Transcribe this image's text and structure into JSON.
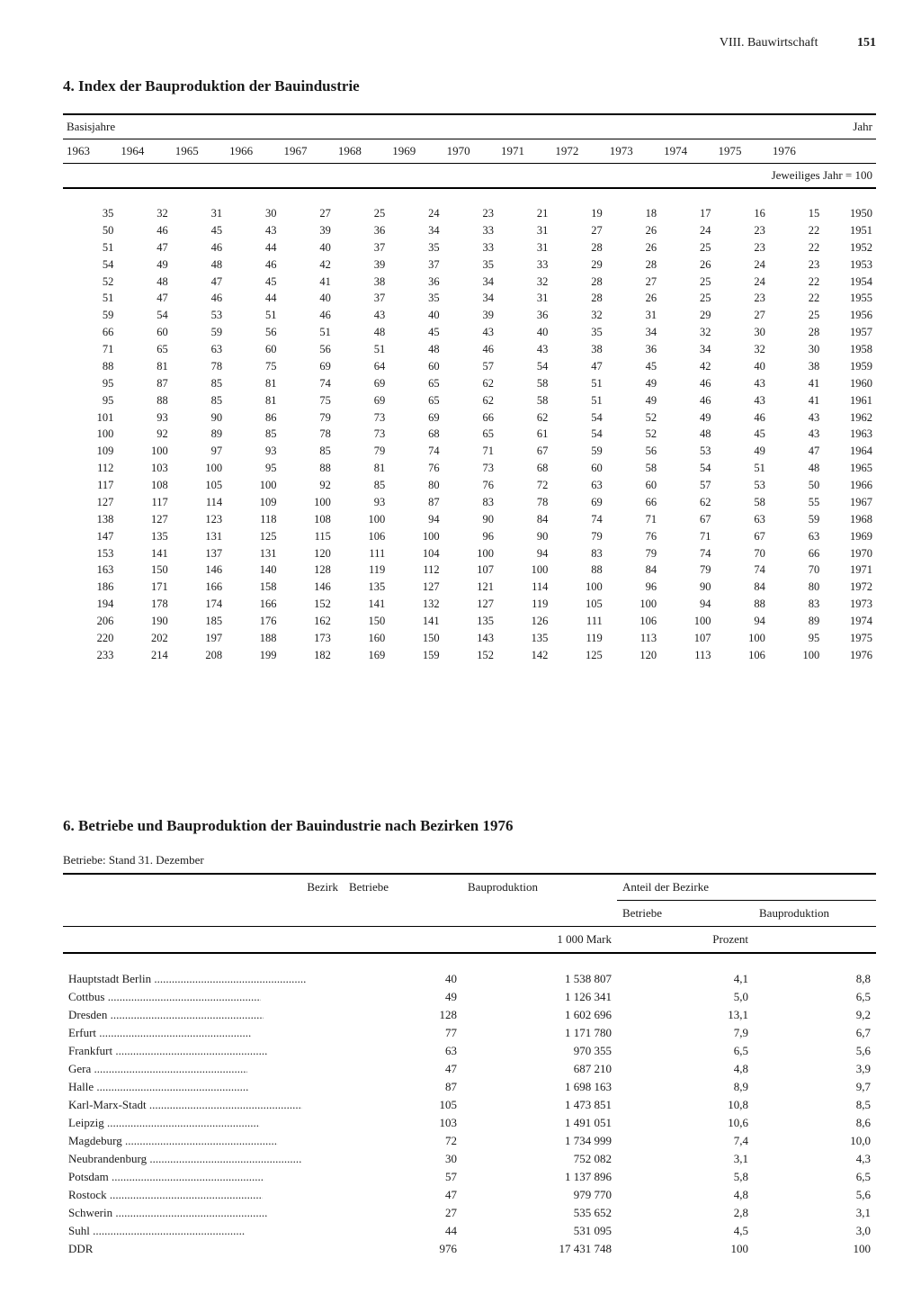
{
  "header": {
    "section": "VIII. Bauwirtschaft",
    "page": "151"
  },
  "table1": {
    "title": "4. Index der Bauproduktion der Bauindustrie",
    "basis_label": "Basisjahre",
    "jahr_label": "Jahr",
    "sub_note": "Jeweiliges Jahr = 100",
    "col_years": [
      "1963",
      "1964",
      "1965",
      "1966",
      "1967",
      "1968",
      "1969",
      "1970",
      "1971",
      "1972",
      "1973",
      "1974",
      "1975",
      "1976"
    ],
    "rows": [
      {
        "v": [
          "35",
          "32",
          "31",
          "30",
          "27",
          "25",
          "24",
          "23",
          "21",
          "19",
          "18",
          "17",
          "16",
          "15"
        ],
        "y": "1950"
      },
      {
        "v": [
          "50",
          "46",
          "45",
          "43",
          "39",
          "36",
          "34",
          "33",
          "31",
          "27",
          "26",
          "24",
          "23",
          "22"
        ],
        "y": "1951"
      },
      {
        "v": [
          "51",
          "47",
          "46",
          "44",
          "40",
          "37",
          "35",
          "33",
          "31",
          "28",
          "26",
          "25",
          "23",
          "22"
        ],
        "y": "1952"
      },
      {
        "v": [
          "54",
          "49",
          "48",
          "46",
          "42",
          "39",
          "37",
          "35",
          "33",
          "29",
          "28",
          "26",
          "24",
          "23"
        ],
        "y": "1953"
      },
      {
        "v": [
          "52",
          "48",
          "47",
          "45",
          "41",
          "38",
          "36",
          "34",
          "32",
          "28",
          "27",
          "25",
          "24",
          "22"
        ],
        "y": "1954"
      },
      {
        "v": [
          "51",
          "47",
          "46",
          "44",
          "40",
          "37",
          "35",
          "34",
          "31",
          "28",
          "26",
          "25",
          "23",
          "22"
        ],
        "y": "1955"
      },
      {
        "v": [
          "59",
          "54",
          "53",
          "51",
          "46",
          "43",
          "40",
          "39",
          "36",
          "32",
          "31",
          "29",
          "27",
          "25"
        ],
        "y": "1956"
      },
      {
        "v": [
          "66",
          "60",
          "59",
          "56",
          "51",
          "48",
          "45",
          "43",
          "40",
          "35",
          "34",
          "32",
          "30",
          "28"
        ],
        "y": "1957"
      },
      {
        "v": [
          "71",
          "65",
          "63",
          "60",
          "56",
          "51",
          "48",
          "46",
          "43",
          "38",
          "36",
          "34",
          "32",
          "30"
        ],
        "y": "1958"
      },
      {
        "v": [
          "88",
          "81",
          "78",
          "75",
          "69",
          "64",
          "60",
          "57",
          "54",
          "47",
          "45",
          "42",
          "40",
          "38"
        ],
        "y": "1959"
      },
      {
        "v": [
          "95",
          "87",
          "85",
          "81",
          "74",
          "69",
          "65",
          "62",
          "58",
          "51",
          "49",
          "46",
          "43",
          "41"
        ],
        "y": "1960"
      },
      {
        "v": [
          "95",
          "88",
          "85",
          "81",
          "75",
          "69",
          "65",
          "62",
          "58",
          "51",
          "49",
          "46",
          "43",
          "41"
        ],
        "y": "1961"
      },
      {
        "v": [
          "101",
          "93",
          "90",
          "86",
          "79",
          "73",
          "69",
          "66",
          "62",
          "54",
          "52",
          "49",
          "46",
          "43"
        ],
        "y": "1962"
      },
      {
        "v": [
          "100",
          "92",
          "89",
          "85",
          "78",
          "73",
          "68",
          "65",
          "61",
          "54",
          "52",
          "48",
          "45",
          "43"
        ],
        "y": "1963"
      },
      {
        "v": [
          "109",
          "100",
          "97",
          "93",
          "85",
          "79",
          "74",
          "71",
          "67",
          "59",
          "56",
          "53",
          "49",
          "47"
        ],
        "y": "1964"
      },
      {
        "v": [
          "112",
          "103",
          "100",
          "95",
          "88",
          "81",
          "76",
          "73",
          "68",
          "60",
          "58",
          "54",
          "51",
          "48"
        ],
        "y": "1965"
      },
      {
        "v": [
          "117",
          "108",
          "105",
          "100",
          "92",
          "85",
          "80",
          "76",
          "72",
          "63",
          "60",
          "57",
          "53",
          "50"
        ],
        "y": "1966"
      },
      {
        "v": [
          "127",
          "117",
          "114",
          "109",
          "100",
          "93",
          "87",
          "83",
          "78",
          "69",
          "66",
          "62",
          "58",
          "55"
        ],
        "y": "1967"
      },
      {
        "v": [
          "138",
          "127",
          "123",
          "118",
          "108",
          "100",
          "94",
          "90",
          "84",
          "74",
          "71",
          "67",
          "63",
          "59"
        ],
        "y": "1968"
      },
      {
        "v": [
          "147",
          "135",
          "131",
          "125",
          "115",
          "106",
          "100",
          "96",
          "90",
          "79",
          "76",
          "71",
          "67",
          "63"
        ],
        "y": "1969"
      },
      {
        "v": [
          "153",
          "141",
          "137",
          "131",
          "120",
          "111",
          "104",
          "100",
          "94",
          "83",
          "79",
          "74",
          "70",
          "66"
        ],
        "y": "1970"
      },
      {
        "v": [
          "163",
          "150",
          "146",
          "140",
          "128",
          "119",
          "112",
          "107",
          "100",
          "88",
          "84",
          "79",
          "74",
          "70"
        ],
        "y": "1971"
      },
      {
        "v": [
          "186",
          "171",
          "166",
          "158",
          "146",
          "135",
          "127",
          "121",
          "114",
          "100",
          "96",
          "90",
          "84",
          "80"
        ],
        "y": "1972"
      },
      {
        "v": [
          "194",
          "178",
          "174",
          "166",
          "152",
          "141",
          "132",
          "127",
          "119",
          "105",
          "100",
          "94",
          "88",
          "83"
        ],
        "y": "1973"
      },
      {
        "v": [
          "206",
          "190",
          "185",
          "176",
          "162",
          "150",
          "141",
          "135",
          "126",
          "111",
          "106",
          "100",
          "94",
          "89"
        ],
        "y": "1974"
      },
      {
        "v": [
          "220",
          "202",
          "197",
          "188",
          "173",
          "160",
          "150",
          "143",
          "135",
          "119",
          "113",
          "107",
          "100",
          "95"
        ],
        "y": "1975"
      },
      {
        "v": [
          "233",
          "214",
          "208",
          "199",
          "182",
          "169",
          "159",
          "152",
          "142",
          "125",
          "120",
          "113",
          "106",
          "100"
        ],
        "y": "1976"
      }
    ]
  },
  "table2": {
    "title": "6. Betriebe und Bauproduktion der Bauindustrie nach Bezirken 1976",
    "note": "Betriebe: Stand 31. Dezember",
    "h_bezirk": "Bezirk",
    "h_betriebe": "Betriebe",
    "h_bauprod": "Bauproduktion",
    "h_anteil": "Anteil der Bezirke",
    "h_anteil_betriebe": "Betriebe",
    "h_anteil_bauprod": "Bauproduktion",
    "unit_mark": "1 000 Mark",
    "unit_prozent": "Prozent",
    "rows": [
      {
        "n": "Hauptstadt Berlin",
        "b": "40",
        "p": "1 538 807",
        "ab": "4,1",
        "ap": "8,8"
      },
      {
        "n": "Cottbus",
        "b": "49",
        "p": "1 126 341",
        "ab": "5,0",
        "ap": "6,5"
      },
      {
        "n": "Dresden",
        "b": "128",
        "p": "1 602 696",
        "ab": "13,1",
        "ap": "9,2"
      },
      {
        "n": "Erfurt",
        "b": "77",
        "p": "1 171 780",
        "ab": "7,9",
        "ap": "6,7"
      },
      {
        "n": "Frankfurt",
        "b": "63",
        "p": "970 355",
        "ab": "6,5",
        "ap": "5,6"
      },
      {
        "n": "Gera",
        "b": "47",
        "p": "687 210",
        "ab": "4,8",
        "ap": "3,9"
      },
      {
        "n": "Halle",
        "b": "87",
        "p": "1 698 163",
        "ab": "8,9",
        "ap": "9,7"
      },
      {
        "n": "Karl-Marx-Stadt",
        "b": "105",
        "p": "1 473 851",
        "ab": "10,8",
        "ap": "8,5"
      },
      {
        "n": "Leipzig",
        "b": "103",
        "p": "1 491 051",
        "ab": "10,6",
        "ap": "8,6"
      },
      {
        "n": "Magdeburg",
        "b": "72",
        "p": "1 734 999",
        "ab": "7,4",
        "ap": "10,0"
      },
      {
        "n": "Neubrandenburg",
        "b": "30",
        "p": "752 082",
        "ab": "3,1",
        "ap": "4,3"
      },
      {
        "n": "Potsdam",
        "b": "57",
        "p": "1 137 896",
        "ab": "5,8",
        "ap": "6,5"
      },
      {
        "n": "Rostock",
        "b": "47",
        "p": "979 770",
        "ab": "4,8",
        "ap": "5,6"
      },
      {
        "n": "Schwerin",
        "b": "27",
        "p": "535 652",
        "ab": "2,8",
        "ap": "3,1"
      },
      {
        "n": "Suhl",
        "b": "44",
        "p": "531 095",
        "ab": "4,5",
        "ap": "3,0"
      }
    ],
    "total": {
      "n": "DDR",
      "b": "976",
      "p": "17 431 748",
      "ab": "100",
      "ap": "100"
    }
  }
}
